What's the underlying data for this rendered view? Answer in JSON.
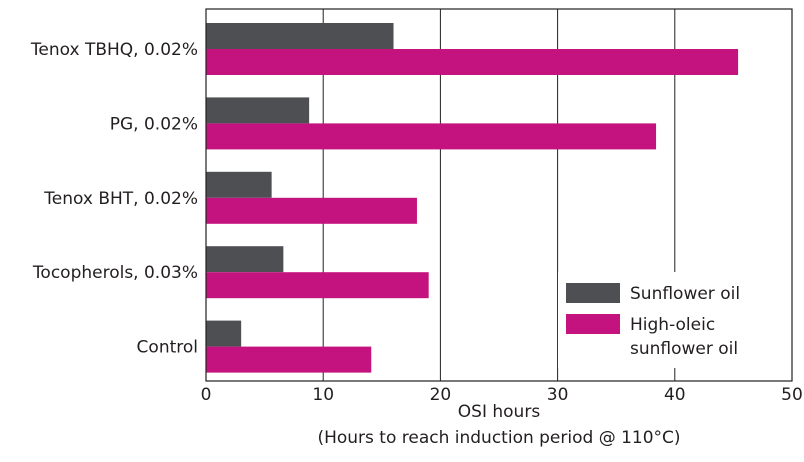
{
  "chart_data": {
    "type": "bar",
    "orientation": "horizontal",
    "categories": [
      "Tenox TBHQ, 0.02%",
      "PG, 0.02%",
      "Tenox BHT, 0.02%",
      "Tocopherols, 0.03%",
      "Control"
    ],
    "series": [
      {
        "name": "Sunflower oil",
        "color": "#4d4f53",
        "values": [
          16,
          8.8,
          5.6,
          6.6,
          3
        ]
      },
      {
        "name": "High-oleic sunflower oil",
        "legend_lines": [
          "High-oleic",
          "sunflower oil"
        ],
        "color": "#c4137f",
        "values": [
          45.4,
          38.4,
          18,
          19,
          14.1
        ]
      }
    ],
    "xlabel": "OSI hours",
    "xlabel_sub": "(Hours to reach induction period @ 110°C)",
    "xlim": [
      0,
      50
    ],
    "xticks": [
      0,
      10,
      20,
      30,
      40,
      50
    ],
    "grid": "vertical",
    "legend_position": "bottom-right"
  }
}
